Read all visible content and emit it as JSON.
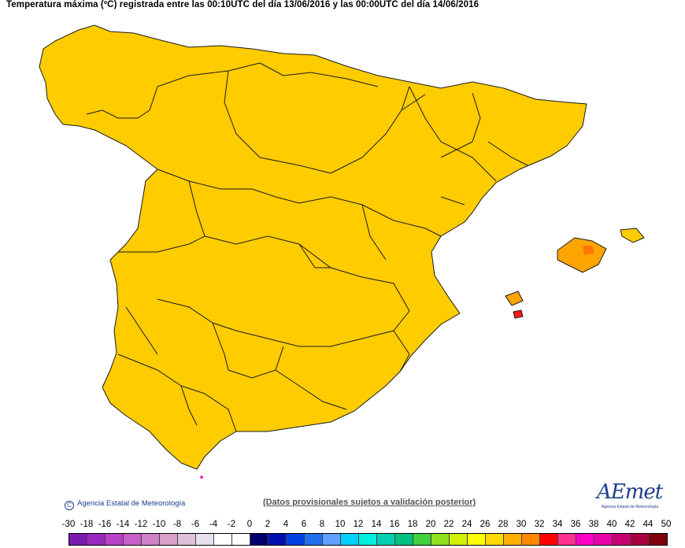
{
  "title": "Temperatura máxima (ºC) registrada entre las 00:10UTC del día 13/06/2016 y las 00:00UTC del día 14/06/2016",
  "credit": "Agencia Estatal de Meteorología",
  "note": "(Datos provisionales sujetos a validación posterior)",
  "logo": {
    "word": "AEmet",
    "subtitle": "Agencia Estatal de Meteorología"
  },
  "colors": {
    "cool_green": "#9be03a",
    "lime": "#c8f000",
    "yellow": "#ffe600",
    "yellow_orange": "#ffcc00",
    "orange": "#ffa500",
    "dark_orange": "#ff7700",
    "red": "#ff1a1a",
    "magenta": "#ff2bd0",
    "dark_magenta": "#d800a0",
    "border": "#1a1a1a"
  },
  "scale": {
    "labels": [
      "-30",
      "-18",
      "-16",
      "-14",
      "-12",
      "-10",
      "-8",
      "-6",
      "-4",
      "-2",
      "0",
      "2",
      "4",
      "6",
      "8",
      "10",
      "12",
      "14",
      "16",
      "18",
      "20",
      "22",
      "24",
      "26",
      "28",
      "30",
      "32",
      "34",
      "36",
      "38",
      "40",
      "42",
      "44",
      "50"
    ],
    "colors": [
      "#7a1ab0",
      "#9a28c0",
      "#b840c8",
      "#c860c8",
      "#d080c8",
      "#d8a0c8",
      "#e0c0d8",
      "#e8e0ec",
      "#ffffff",
      "#ffffff",
      "#00006e",
      "#0010b0",
      "#0040e0",
      "#2070f0",
      "#60a0ff",
      "#00d0ff",
      "#00f0e0",
      "#00d0b0",
      "#00c080",
      "#40d040",
      "#90e020",
      "#d0f000",
      "#ffff00",
      "#ffd800",
      "#ffb000",
      "#ff8800",
      "#ff0000",
      "#ff3090",
      "#ff00c8",
      "#e800a8",
      "#c80070",
      "#a80040",
      "#800010"
    ]
  }
}
